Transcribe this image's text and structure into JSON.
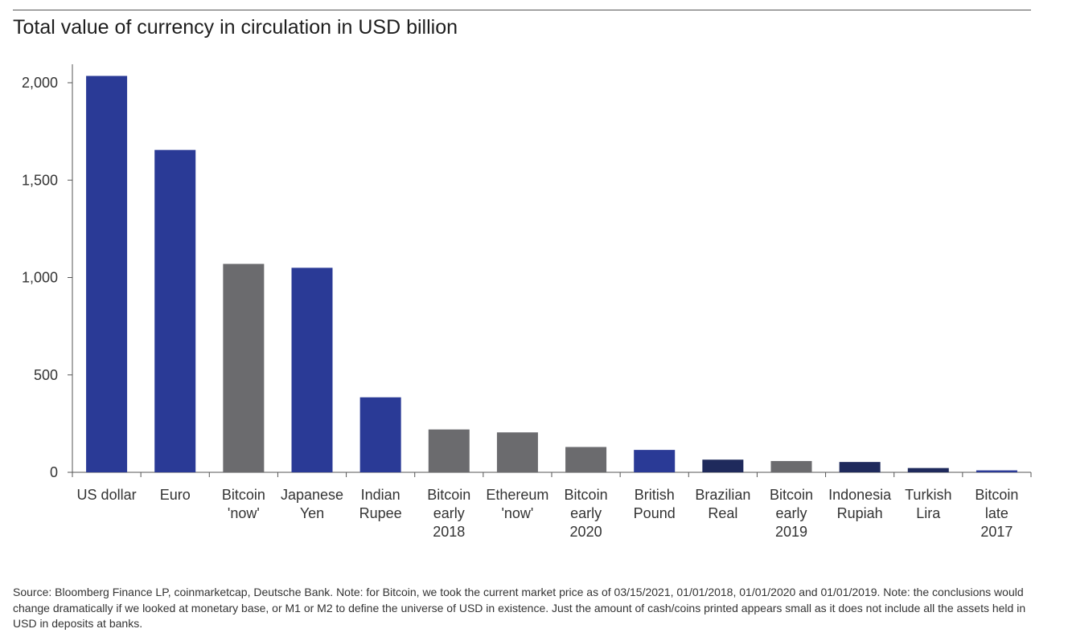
{
  "chart_data": {
    "type": "bar",
    "title": "Total value of currency in circulation in USD billion",
    "xlabel": "",
    "ylabel": "",
    "ylim": [
      0,
      2000
    ],
    "yticks": [
      0,
      500,
      1000,
      1500,
      2000
    ],
    "ytick_labels": [
      "0",
      "500",
      "1,000",
      "1,500",
      "2,000"
    ],
    "grid": false,
    "categories": [
      [
        "US dollar"
      ],
      [
        "Euro"
      ],
      [
        "Bitcoin",
        "'now'"
      ],
      [
        "Japanese",
        "Yen"
      ],
      [
        "Indian",
        "Rupee"
      ],
      [
        "Bitcoin",
        "early",
        "2018"
      ],
      [
        "Ethereum",
        "'now'"
      ],
      [
        "Bitcoin",
        "early",
        "2020"
      ],
      [
        "British",
        "Pound"
      ],
      [
        "Brazilian",
        "Real"
      ],
      [
        "Bitcoin",
        "early",
        "2019"
      ],
      [
        "Indonesia",
        "Rupiah"
      ],
      [
        "Turkish",
        "Lira"
      ],
      [
        "Bitcoin",
        "late",
        "2017"
      ]
    ],
    "values": [
      2035,
      1655,
      1070,
      1050,
      385,
      220,
      205,
      130,
      115,
      65,
      58,
      53,
      22,
      10
    ],
    "colors": [
      "#2a3a96",
      "#2a3a96",
      "#6b6b6e",
      "#2a3a96",
      "#2a3a96",
      "#6b6b6e",
      "#6b6b6e",
      "#6b6b6e",
      "#2a3a96",
      "#1f2a5c",
      "#6b6b6e",
      "#1f2a5c",
      "#1f2a5c",
      "#2a3a96"
    ]
  },
  "source_note": "Source: Bloomberg Finance LP, coinmarketcap, Deutsche Bank. Note: for Bitcoin, we took the current market price as of 03/15/2021, 01/01/2018, 01/01/2020 and 01/01/2019. Note: the conclusions would change dramatically if we looked at monetary base, or M1 or M2 to define the universe of USD in existence. Just the amount of cash/coins printed appears small as it does not include all the assets held in USD in deposits at banks."
}
